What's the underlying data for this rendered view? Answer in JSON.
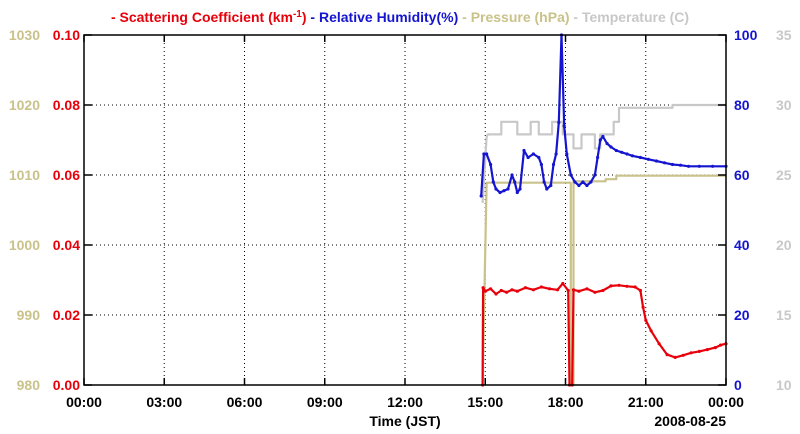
{
  "chart_data": {
    "type": "line",
    "legend": [
      {
        "text": "- Scattering Coefficient (km",
        "sup": "-1",
        "tail": ")",
        "color": "#e8000b"
      },
      {
        "text": "- Relative Humidity(%)",
        "color": "#1515d0"
      },
      {
        "text": "- Pressure (hPa)",
        "color": "#c9c28a"
      },
      {
        "text": "- Temperature (C)",
        "color": "#c8c8c8"
      }
    ],
    "xlabel": "Time (JST)",
    "date_label": "2008-08-25",
    "x_ticks": [
      "00:00",
      "03:00",
      "06:00",
      "09:00",
      "12:00",
      "15:00",
      "18:00",
      "21:00",
      "00:00"
    ],
    "x_range_hours": [
      0,
      24
    ],
    "axes": {
      "pressure": {
        "ticks": [
          "980",
          "990",
          "1000",
          "1010",
          "1020",
          "1030"
        ],
        "range": [
          980,
          1030
        ],
        "color": "#c9c28a"
      },
      "scattering": {
        "ticks": [
          "0.00",
          "0.02",
          "0.04",
          "0.06",
          "0.08",
          "0.10"
        ],
        "range": [
          0,
          0.1
        ],
        "color": "#e8000b"
      },
      "humidity": {
        "ticks": [
          "0",
          "20",
          "40",
          "60",
          "80",
          "100"
        ],
        "range": [
          0,
          100
        ],
        "color": "#1515d0"
      },
      "temperature": {
        "ticks": [
          "10",
          "15",
          "20",
          "25",
          "30",
          "35"
        ],
        "range": [
          10,
          35
        ],
        "color": "#c8c8c8"
      }
    },
    "grid": true,
    "series": [
      {
        "name": "Temperature (C)",
        "axis": "temperature",
        "color": "#c8c8c8",
        "x": [
          14.9,
          15.05,
          15.1,
          15.6,
          15.6,
          16.2,
          16.2,
          16.7,
          16.7,
          17.0,
          17.0,
          17.5,
          17.5,
          17.9,
          17.9,
          18.3,
          18.3,
          18.6,
          18.6,
          19.1,
          19.1,
          19.3,
          19.3,
          19.8,
          19.8,
          20.0,
          20.0,
          21.2,
          21.2,
          22.0,
          22.0,
          24.0
        ],
        "y": [
          23,
          27.7,
          27.9,
          27.9,
          28.8,
          28.8,
          27.9,
          27.9,
          28.8,
          28.8,
          27.9,
          27.9,
          28.8,
          28.8,
          27.9,
          27.9,
          26.9,
          26.9,
          27.9,
          27.9,
          26.9,
          26.9,
          27.9,
          27.9,
          28.8,
          28.8,
          29.8,
          29.8,
          29.8,
          29.8,
          30,
          30
        ]
      },
      {
        "name": "Pressure (hPa)",
        "axis": "pressure",
        "color": "#c9c28a",
        "x": [
          14.9,
          15.05,
          15.1,
          18.2,
          18.2,
          18.3,
          18.3,
          19.5,
          19.5,
          19.9,
          19.9,
          24.0
        ],
        "y": [
          980,
          1008.9,
          1008.9,
          1008.9,
          980,
          980,
          1009.1,
          1009.1,
          1009.4,
          1009.4,
          1009.9,
          1009.9
        ]
      },
      {
        "name": "Relative Humidity(%)",
        "axis": "humidity",
        "color": "#1515d0",
        "x": [
          14.85,
          14.95,
          15.05,
          15.2,
          15.3,
          15.4,
          15.55,
          15.7,
          15.85,
          16.0,
          16.1,
          16.2,
          16.3,
          16.45,
          16.6,
          16.8,
          17.0,
          17.1,
          17.2,
          17.3,
          17.45,
          17.55,
          17.65,
          17.75,
          17.85,
          17.95,
          18.05,
          18.2,
          18.35,
          18.5,
          18.65,
          18.8,
          18.95,
          19.1,
          19.2,
          19.3,
          19.4,
          19.55,
          19.7,
          19.9,
          20.1,
          20.3,
          20.5,
          20.8,
          21.1,
          21.4,
          21.7,
          22.0,
          22.3,
          22.6,
          23.0,
          23.5,
          24.0
        ],
        "y": [
          54,
          66,
          66,
          63,
          58,
          56,
          55,
          55.5,
          56,
          60,
          58,
          55,
          56,
          67,
          65,
          66,
          65,
          63,
          58,
          56,
          57,
          63,
          66,
          75,
          100,
          74,
          66,
          60,
          58,
          57,
          58,
          57,
          58,
          60,
          65,
          70,
          71,
          69,
          68,
          67,
          66.5,
          66,
          65.5,
          65,
          64.5,
          64,
          63.5,
          63,
          62.8,
          62.5,
          62.5,
          62.5,
          62.5
        ]
      },
      {
        "name": "Scattering Coefficient (km-1)",
        "axis": "scattering",
        "color": "#e8000b",
        "x": [
          14.9,
          14.92,
          15.0,
          15.2,
          15.4,
          15.6,
          15.8,
          16.0,
          16.2,
          16.5,
          16.8,
          17.1,
          17.4,
          17.7,
          17.9,
          18.1,
          18.15,
          18.25,
          18.3,
          18.5,
          18.8,
          19.1,
          19.4,
          19.7,
          20.0,
          20.3,
          20.6,
          20.8,
          20.9,
          21.0,
          21.2,
          21.5,
          21.8,
          22.1,
          22.4,
          22.7,
          23.0,
          23.3,
          23.6,
          23.8,
          24.0
        ],
        "y": [
          0.0,
          0.0278,
          0.0268,
          0.0275,
          0.026,
          0.027,
          0.0265,
          0.0272,
          0.0268,
          0.0278,
          0.0272,
          0.028,
          0.0275,
          0.0272,
          0.029,
          0.027,
          0.0,
          0.0,
          0.0272,
          0.0268,
          0.0275,
          0.0265,
          0.027,
          0.0283,
          0.0285,
          0.0282,
          0.028,
          0.027,
          0.0222,
          0.0185,
          0.0155,
          0.0118,
          0.0087,
          0.0079,
          0.0085,
          0.0092,
          0.0096,
          0.0101,
          0.0107,
          0.0114,
          0.0118
        ]
      }
    ]
  }
}
